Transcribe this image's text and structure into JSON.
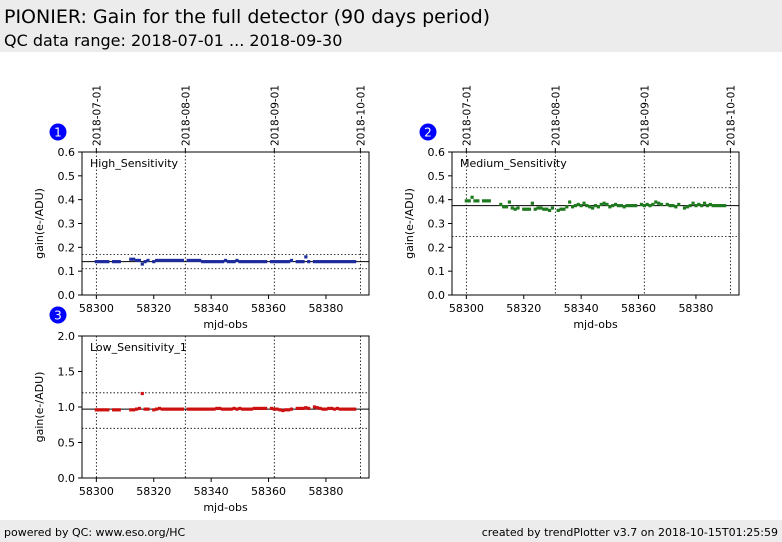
{
  "header": {
    "title": "PIONIER: Gain for the full detector (90 days period)",
    "subtitle": "QC data range: 2018-07-01 ... 2018-09-30"
  },
  "footer": {
    "left": "powered by QC: www.eso.org/HC",
    "right": "created by trendPlotter v3.7 on 2018-10-15T01:25:59"
  },
  "colors": {
    "header_bg": "#ececec",
    "high": "#1f2c9c",
    "medium": "#1f7a1f",
    "low": "#cc1111",
    "badge": "#0000ff"
  },
  "chart_data": [
    {
      "type": "scatter",
      "badge": "1",
      "series_label": "High_Sensitivity",
      "color": "#1f2c9c",
      "xlabel": "mjd-obs",
      "ylabel": "gain(e-/ADU)",
      "xlim": [
        58295,
        58395
      ],
      "ylim": [
        0,
        0.6
      ],
      "yticks": [
        "0.0",
        "0.1",
        "0.2",
        "0.3",
        "0.4",
        "0.5",
        "0.6"
      ],
      "xticks": [
        "58300",
        "58320",
        "58340",
        "58360",
        "58380"
      ],
      "date_ticks": [
        {
          "label": "2018-07-01",
          "mjd": 58300
        },
        {
          "label": "2018-08-01",
          "mjd": 58331
        },
        {
          "label": "2018-09-01",
          "mjd": 58362
        },
        {
          "label": "2018-10-01",
          "mjd": 58392
        }
      ],
      "ref_line": 0.14,
      "band": [
        0.11,
        0.17
      ],
      "points": [
        [
          58300,
          0.14
        ],
        [
          58301,
          0.14
        ],
        [
          58302,
          0.14
        ],
        [
          58303,
          0.14
        ],
        [
          58304,
          0.14
        ],
        [
          58306,
          0.14
        ],
        [
          58307,
          0.14
        ],
        [
          58308,
          0.14
        ],
        [
          58312,
          0.15
        ],
        [
          58313,
          0.15
        ],
        [
          58314,
          0.145
        ],
        [
          58315,
          0.145
        ],
        [
          58316,
          0.13
        ],
        [
          58317,
          0.14
        ],
        [
          58318,
          0.145
        ],
        [
          58320,
          0.14
        ],
        [
          58321,
          0.145
        ],
        [
          58322,
          0.145
        ],
        [
          58323,
          0.145
        ],
        [
          58324,
          0.145
        ],
        [
          58325,
          0.145
        ],
        [
          58326,
          0.145
        ],
        [
          58327,
          0.145
        ],
        [
          58328,
          0.145
        ],
        [
          58329,
          0.145
        ],
        [
          58330,
          0.145
        ],
        [
          58332,
          0.145
        ],
        [
          58333,
          0.145
        ],
        [
          58334,
          0.145
        ],
        [
          58335,
          0.145
        ],
        [
          58336,
          0.145
        ],
        [
          58337,
          0.14
        ],
        [
          58338,
          0.14
        ],
        [
          58339,
          0.14
        ],
        [
          58340,
          0.14
        ],
        [
          58341,
          0.14
        ],
        [
          58342,
          0.14
        ],
        [
          58343,
          0.14
        ],
        [
          58344,
          0.14
        ],
        [
          58345,
          0.145
        ],
        [
          58346,
          0.14
        ],
        [
          58347,
          0.14
        ],
        [
          58348,
          0.14
        ],
        [
          58349,
          0.145
        ],
        [
          58350,
          0.14
        ],
        [
          58351,
          0.14
        ],
        [
          58352,
          0.14
        ],
        [
          58353,
          0.14
        ],
        [
          58354,
          0.14
        ],
        [
          58355,
          0.14
        ],
        [
          58356,
          0.14
        ],
        [
          58357,
          0.14
        ],
        [
          58358,
          0.14
        ],
        [
          58359,
          0.14
        ],
        [
          58361,
          0.14
        ],
        [
          58362,
          0.14
        ],
        [
          58363,
          0.14
        ],
        [
          58364,
          0.14
        ],
        [
          58365,
          0.14
        ],
        [
          58366,
          0.14
        ],
        [
          58367,
          0.14
        ],
        [
          58368,
          0.145
        ],
        [
          58370,
          0.14
        ],
        [
          58371,
          0.14
        ],
        [
          58372,
          0.14
        ],
        [
          58373,
          0.16
        ],
        [
          58374,
          0.14
        ],
        [
          58376,
          0.14
        ],
        [
          58377,
          0.14
        ],
        [
          58378,
          0.14
        ],
        [
          58379,
          0.14
        ],
        [
          58380,
          0.14
        ],
        [
          58381,
          0.14
        ],
        [
          58382,
          0.14
        ],
        [
          58383,
          0.14
        ],
        [
          58384,
          0.14
        ],
        [
          58385,
          0.14
        ],
        [
          58386,
          0.14
        ],
        [
          58387,
          0.14
        ],
        [
          58388,
          0.14
        ],
        [
          58389,
          0.14
        ],
        [
          58390,
          0.14
        ]
      ]
    },
    {
      "type": "scatter",
      "badge": "2",
      "series_label": "Medium_Sensitivity",
      "color": "#1f7a1f",
      "xlabel": "mjd-obs",
      "ylabel": "gain(e-/ADU)",
      "xlim": [
        58295,
        58395
      ],
      "ylim": [
        0,
        0.6
      ],
      "yticks": [
        "0.0",
        "0.1",
        "0.2",
        "0.3",
        "0.4",
        "0.5",
        "0.6"
      ],
      "xticks": [
        "58300",
        "58320",
        "58340",
        "58360",
        "58380"
      ],
      "date_ticks": [
        {
          "label": "2018-07-01",
          "mjd": 58300
        },
        {
          "label": "2018-08-01",
          "mjd": 58331
        },
        {
          "label": "2018-09-01",
          "mjd": 58362
        },
        {
          "label": "2018-10-01",
          "mjd": 58392
        }
      ],
      "ref_line": 0.375,
      "band": [
        0.245,
        0.45
      ],
      "points": [
        [
          58300,
          0.395
        ],
        [
          58301,
          0.395
        ],
        [
          58302,
          0.41
        ],
        [
          58303,
          0.395
        ],
        [
          58304,
          0.395
        ],
        [
          58306,
          0.395
        ],
        [
          58307,
          0.395
        ],
        [
          58308,
          0.395
        ],
        [
          58312,
          0.38
        ],
        [
          58313,
          0.37
        ],
        [
          58314,
          0.37
        ],
        [
          58315,
          0.39
        ],
        [
          58316,
          0.365
        ],
        [
          58317,
          0.36
        ],
        [
          58318,
          0.365
        ],
        [
          58320,
          0.36
        ],
        [
          58321,
          0.36
        ],
        [
          58322,
          0.36
        ],
        [
          58323,
          0.385
        ],
        [
          58324,
          0.36
        ],
        [
          58325,
          0.365
        ],
        [
          58326,
          0.365
        ],
        [
          58327,
          0.36
        ],
        [
          58328,
          0.36
        ],
        [
          58329,
          0.355
        ],
        [
          58330,
          0.365
        ],
        [
          58332,
          0.355
        ],
        [
          58333,
          0.36
        ],
        [
          58334,
          0.36
        ],
        [
          58335,
          0.37
        ],
        [
          58336,
          0.39
        ],
        [
          58337,
          0.37
        ],
        [
          58338,
          0.375
        ],
        [
          58339,
          0.38
        ],
        [
          58340,
          0.375
        ],
        [
          58341,
          0.385
        ],
        [
          58342,
          0.375
        ],
        [
          58343,
          0.37
        ],
        [
          58344,
          0.365
        ],
        [
          58345,
          0.375
        ],
        [
          58346,
          0.37
        ],
        [
          58347,
          0.38
        ],
        [
          58348,
          0.385
        ],
        [
          58349,
          0.38
        ],
        [
          58350,
          0.37
        ],
        [
          58351,
          0.375
        ],
        [
          58352,
          0.38
        ],
        [
          58353,
          0.375
        ],
        [
          58354,
          0.375
        ],
        [
          58355,
          0.37
        ],
        [
          58356,
          0.375
        ],
        [
          58357,
          0.375
        ],
        [
          58358,
          0.375
        ],
        [
          58359,
          0.375
        ],
        [
          58361,
          0.38
        ],
        [
          58362,
          0.375
        ],
        [
          58363,
          0.38
        ],
        [
          58364,
          0.375
        ],
        [
          58365,
          0.38
        ],
        [
          58366,
          0.39
        ],
        [
          58367,
          0.385
        ],
        [
          58368,
          0.38
        ],
        [
          58370,
          0.38
        ],
        [
          58371,
          0.375
        ],
        [
          58372,
          0.375
        ],
        [
          58373,
          0.37
        ],
        [
          58374,
          0.38
        ],
        [
          58376,
          0.365
        ],
        [
          58377,
          0.37
        ],
        [
          58378,
          0.375
        ],
        [
          58379,
          0.385
        ],
        [
          58380,
          0.375
        ],
        [
          58381,
          0.38
        ],
        [
          58382,
          0.375
        ],
        [
          58383,
          0.385
        ],
        [
          58384,
          0.375
        ],
        [
          58385,
          0.38
        ],
        [
          58386,
          0.375
        ],
        [
          58387,
          0.375
        ],
        [
          58388,
          0.375
        ],
        [
          58389,
          0.375
        ],
        [
          58390,
          0.375
        ]
      ]
    },
    {
      "type": "scatter",
      "badge": "3",
      "series_label": "Low_Sensitivity_1",
      "color": "#cc1111",
      "xlabel": "mjd-obs",
      "ylabel": "gain(e-/ADU)",
      "xlim": [
        58295,
        58395
      ],
      "ylim": [
        0,
        2.0
      ],
      "yticks": [
        "0.0",
        "0.5",
        "1.0",
        "1.5",
        "2.0"
      ],
      "xticks": [
        "58300",
        "58320",
        "58340",
        "58360",
        "58380"
      ],
      "date_ticks": [
        {
          "label": "2018-07-01",
          "mjd": 58300
        },
        {
          "label": "2018-08-01",
          "mjd": 58331
        },
        {
          "label": "2018-09-01",
          "mjd": 58362
        },
        {
          "label": "2018-10-01",
          "mjd": 58392
        }
      ],
      "ref_line": 0.97,
      "band": [
        0.7,
        1.2
      ],
      "points": [
        [
          58300,
          0.96
        ],
        [
          58301,
          0.96
        ],
        [
          58302,
          0.96
        ],
        [
          58303,
          0.96
        ],
        [
          58304,
          0.96
        ],
        [
          58306,
          0.96
        ],
        [
          58307,
          0.96
        ],
        [
          58308,
          0.96
        ],
        [
          58312,
          0.96
        ],
        [
          58313,
          0.96
        ],
        [
          58314,
          0.97
        ],
        [
          58315,
          0.98
        ],
        [
          58316,
          1.19
        ],
        [
          58317,
          0.97
        ],
        [
          58318,
          0.97
        ],
        [
          58320,
          0.96
        ],
        [
          58321,
          0.97
        ],
        [
          58322,
          0.98
        ],
        [
          58323,
          0.97
        ],
        [
          58324,
          0.97
        ],
        [
          58325,
          0.97
        ],
        [
          58326,
          0.97
        ],
        [
          58327,
          0.97
        ],
        [
          58328,
          0.97
        ],
        [
          58329,
          0.97
        ],
        [
          58330,
          0.97
        ],
        [
          58332,
          0.97
        ],
        [
          58333,
          0.97
        ],
        [
          58334,
          0.97
        ],
        [
          58335,
          0.97
        ],
        [
          58336,
          0.97
        ],
        [
          58337,
          0.97
        ],
        [
          58338,
          0.97
        ],
        [
          58339,
          0.97
        ],
        [
          58340,
          0.97
        ],
        [
          58341,
          0.97
        ],
        [
          58342,
          0.98
        ],
        [
          58343,
          0.98
        ],
        [
          58344,
          0.97
        ],
        [
          58345,
          0.97
        ],
        [
          58346,
          0.97
        ],
        [
          58347,
          0.97
        ],
        [
          58348,
          0.98
        ],
        [
          58349,
          0.97
        ],
        [
          58350,
          0.98
        ],
        [
          58351,
          0.97
        ],
        [
          58352,
          0.97
        ],
        [
          58353,
          0.97
        ],
        [
          58354,
          0.97
        ],
        [
          58355,
          0.98
        ],
        [
          58356,
          0.98
        ],
        [
          58357,
          0.98
        ],
        [
          58358,
          0.98
        ],
        [
          58359,
          0.98
        ],
        [
          58361,
          0.98
        ],
        [
          58362,
          0.97
        ],
        [
          58363,
          0.97
        ],
        [
          58364,
          0.96
        ],
        [
          58365,
          0.95
        ],
        [
          58366,
          0.96
        ],
        [
          58367,
          0.96
        ],
        [
          58368,
          0.97
        ],
        [
          58370,
          0.98
        ],
        [
          58371,
          0.98
        ],
        [
          58372,
          0.98
        ],
        [
          58373,
          0.99
        ],
        [
          58374,
          0.98
        ],
        [
          58376,
          1.0
        ],
        [
          58377,
          0.99
        ],
        [
          58378,
          0.98
        ],
        [
          58379,
          0.97
        ],
        [
          58380,
          0.97
        ],
        [
          58381,
          0.98
        ],
        [
          58382,
          0.98
        ],
        [
          58383,
          0.97
        ],
        [
          58384,
          0.98
        ],
        [
          58385,
          0.97
        ],
        [
          58386,
          0.97
        ],
        [
          58387,
          0.97
        ],
        [
          58388,
          0.97
        ],
        [
          58389,
          0.97
        ],
        [
          58390,
          0.97
        ]
      ]
    }
  ]
}
